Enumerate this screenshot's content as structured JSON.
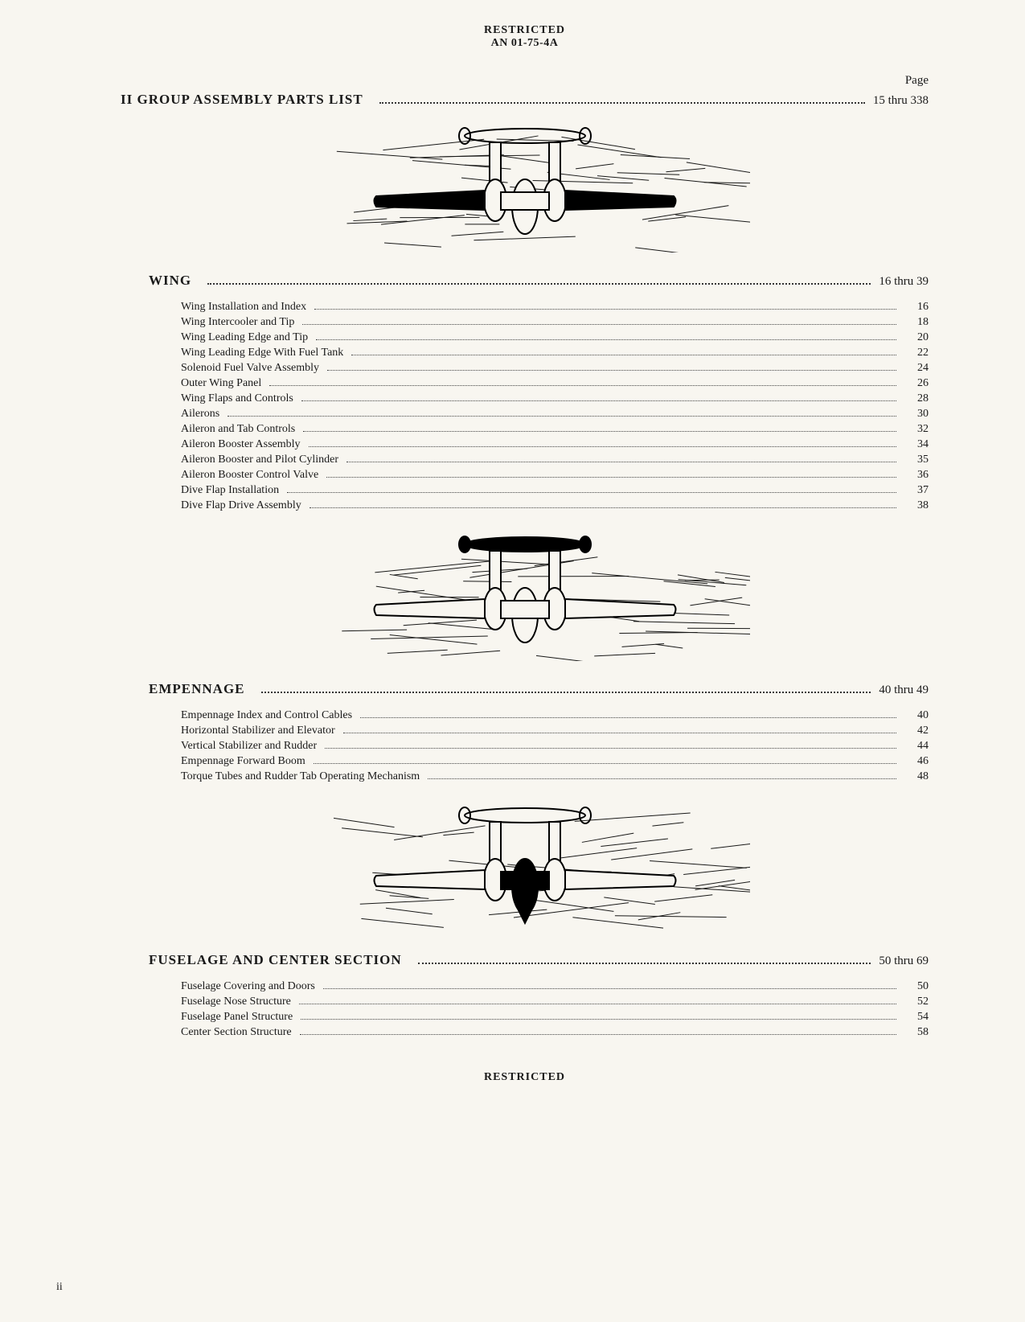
{
  "header": {
    "restricted": "RESTRICTED",
    "docNumber": "AN 01-75-4A"
  },
  "pageLabel": "Page",
  "mainSection": {
    "title": "II GROUP ASSEMBLY PARTS LIST",
    "pageRange": "15 thru 338"
  },
  "sections": [
    {
      "title": "WING",
      "pageRange": "16 thru 39",
      "illustration": {
        "highlightArea": "wings",
        "fillWingTips": true
      },
      "items": [
        {
          "label": "Wing Installation and Index",
          "page": "16"
        },
        {
          "label": "Wing Intercooler and Tip",
          "page": "18"
        },
        {
          "label": "Wing Leading Edge and Tip",
          "page": "20"
        },
        {
          "label": "Wing Leading Edge With Fuel Tank",
          "page": "22"
        },
        {
          "label": "Solenoid Fuel Valve Assembly",
          "page": "24"
        },
        {
          "label": "Outer Wing Panel",
          "page": "26"
        },
        {
          "label": "Wing Flaps and Controls",
          "page": "28"
        },
        {
          "label": "Ailerons",
          "page": "30"
        },
        {
          "label": "Aileron and Tab Controls",
          "page": "32"
        },
        {
          "label": "Aileron Booster Assembly",
          "page": "34"
        },
        {
          "label": "Aileron Booster and Pilot Cylinder",
          "page": "35"
        },
        {
          "label": "Aileron Booster Control Valve",
          "page": "36"
        },
        {
          "label": "Dive Flap Installation",
          "page": "37"
        },
        {
          "label": "Dive Flap Drive Assembly",
          "page": "38"
        }
      ]
    },
    {
      "title": "EMPENNAGE",
      "pageRange": "40 thru 49",
      "illustration": {
        "highlightArea": "tail",
        "fillTail": true
      },
      "items": [
        {
          "label": "Empennage Index and Control Cables",
          "page": "40"
        },
        {
          "label": "Horizontal Stabilizer and Elevator",
          "page": "42"
        },
        {
          "label": "Vertical Stabilizer and Rudder",
          "page": "44"
        },
        {
          "label": "Empennage Forward Boom",
          "page": "46"
        },
        {
          "label": "Torque Tubes and Rudder Tab Operating Mechanism",
          "page": "48"
        }
      ]
    },
    {
      "title": "FUSELAGE AND CENTER SECTION",
      "pageRange": "50 thru 69",
      "illustration": {
        "highlightArea": "fuselage",
        "fillFuselage": true
      },
      "items": [
        {
          "label": "Fuselage Covering and Doors",
          "page": "50"
        },
        {
          "label": "Fuselage Nose Structure",
          "page": "52"
        },
        {
          "label": "Fuselage Panel Structure",
          "page": "54"
        },
        {
          "label": "Center Section Structure",
          "page": "58"
        }
      ]
    }
  ],
  "footer": {
    "restricted": "RESTRICTED",
    "pageNumber": "ii"
  },
  "colors": {
    "background": "#f8f6f0",
    "text": "#1a1a1a",
    "dotLeader": "#333333",
    "illustrationStroke": "#000000",
    "illustrationFill": "#000000"
  },
  "typography": {
    "bodyFont": "Georgia, Times New Roman, serif",
    "headerFontSize": 14,
    "sectionTitleFontSize": 17,
    "itemFontSize": 14,
    "pageLabelFontSize": 15
  }
}
